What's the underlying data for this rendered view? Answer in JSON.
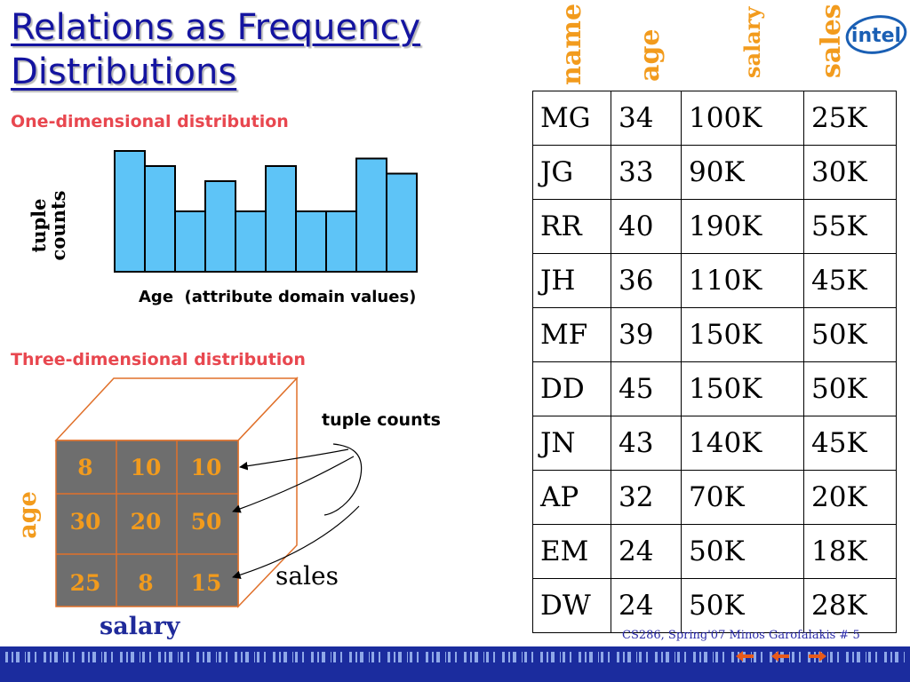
{
  "title": {
    "line1": "Relations as Frequency",
    "line2": "Distributions"
  },
  "one_dim": {
    "heading": "One-dimensional distribution",
    "ylabel_line1": "tuple",
    "ylabel_line2": "counts",
    "xlabel": "Age  (attribute domain values)"
  },
  "three_dim": {
    "heading": "Three-dimensional distribution",
    "tuple_counts_label": "tuple counts",
    "sales_label": "sales",
    "salary_label": "salary",
    "age_label": "age",
    "grid": [
      [
        "8",
        "10",
        "10"
      ],
      [
        "30",
        "20",
        "50"
      ],
      [
        "25",
        "8",
        "15"
      ]
    ]
  },
  "table": {
    "columns": [
      "name",
      "age",
      "salary",
      "sales"
    ],
    "rows": [
      [
        "MG",
        "34",
        "100K",
        "25K"
      ],
      [
        "JG",
        "33",
        "90K",
        "30K"
      ],
      [
        "RR",
        "40",
        "190K",
        "55K"
      ],
      [
        "JH",
        "36",
        "110K",
        "45K"
      ],
      [
        "MF",
        "39",
        "150K",
        "50K"
      ],
      [
        "DD",
        "45",
        "150K",
        "50K"
      ],
      [
        "JN",
        "43",
        "140K",
        "45K"
      ],
      [
        "AP",
        "32",
        "70K",
        "20K"
      ],
      [
        "EM",
        "24",
        "50K",
        "18K"
      ],
      [
        "DW",
        "24",
        "50K",
        "28K"
      ]
    ]
  },
  "logo": {
    "text": "intel"
  },
  "footer": {
    "text": "CS286, Spring'07    Minos Garofalakis   # 5"
  },
  "colors": {
    "title": "#1414a0",
    "heading": "#e8474f",
    "bar_fill": "#5ec4f7",
    "cube_face": "#6e6e6e",
    "cube_edge": "#e0702a",
    "accent_orange": "#f29b1d",
    "footer_bar": "#1b2c9e"
  },
  "chart_data": {
    "type": "bar",
    "title": "",
    "xlabel": "Age  (attribute domain values)",
    "ylabel": "tuple counts",
    "categories": [
      "",
      "",
      "",
      "",
      "",
      "",
      "",
      "",
      "",
      ""
    ],
    "values": [
      8,
      7,
      4,
      6,
      4,
      7,
      4,
      4,
      7.5,
      6.5
    ],
    "ylim": [
      0,
      8
    ],
    "grid": false,
    "legend": "none"
  }
}
